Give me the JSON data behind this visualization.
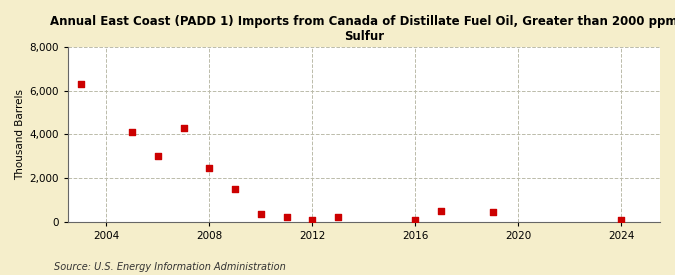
{
  "title": "Annual East Coast (PADD 1) Imports from Canada of Distillate Fuel Oil, Greater than 2000 ppm\nSulfur",
  "ylabel": "Thousand Barrels",
  "source": "Source: U.S. Energy Information Administration",
  "background_color": "#f5eecb",
  "plot_bg_color": "#ffffff",
  "marker_color": "#cc0000",
  "data_points": [
    [
      2003,
      6300
    ],
    [
      2005,
      4100
    ],
    [
      2006,
      3000
    ],
    [
      2007,
      4300
    ],
    [
      2008,
      2450
    ],
    [
      2009,
      1500
    ],
    [
      2010,
      350
    ],
    [
      2011,
      200
    ],
    [
      2012,
      75
    ],
    [
      2013,
      200
    ],
    [
      2016,
      75
    ],
    [
      2017,
      480
    ],
    [
      2019,
      460
    ],
    [
      2024,
      75
    ]
  ],
  "xlim": [
    2002.5,
    2025.5
  ],
  "ylim": [
    0,
    8000
  ],
  "yticks": [
    0,
    2000,
    4000,
    6000,
    8000
  ],
  "xticks": [
    2004,
    2008,
    2012,
    2016,
    2020,
    2024
  ],
  "grid_color": "#bbbbaa",
  "grid_style": "--",
  "title_fontsize": 8.5,
  "axis_fontsize": 7.5,
  "source_fontsize": 7
}
